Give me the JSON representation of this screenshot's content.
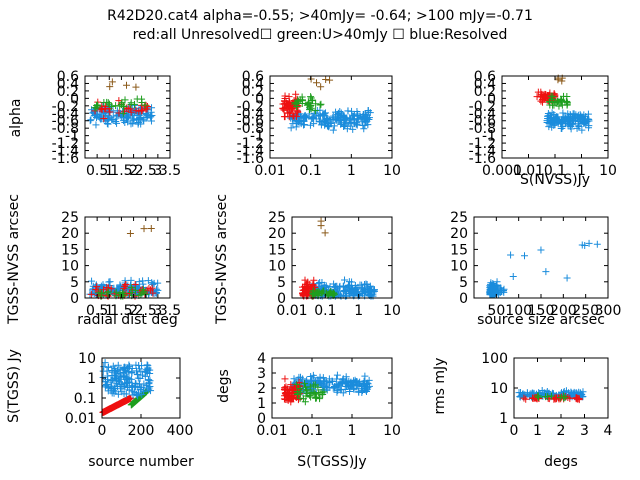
{
  "header": {
    "line1": "R42D20.cat4 alpha=-0.55; >40mJy= -0.64; >100 mJy=-0.71",
    "line2": "red:all Unresolved☐ green:U>40mJy ☐ blue:Resolved"
  },
  "colors": {
    "red": "#ee1111",
    "green": "#1f9e1f",
    "blue": "#1a8cdc",
    "brown": "#8b5a1a"
  },
  "chart_data": [
    {
      "type": "scatter",
      "name": "alpha-vs-radial",
      "ylabel": "alpha",
      "xlabel": "",
      "xlim": [
        0,
        3.5
      ],
      "ylim": [
        -1.6,
        0.6
      ],
      "xticks": [
        "0.5",
        "1",
        "1.5",
        "2",
        "2.5",
        "3",
        "3.5"
      ],
      "yticks": [
        "0.6",
        "0.4",
        "0.2",
        "0",
        "-0.2",
        "-0.4",
        "-0.6",
        "-0.8",
        "-1",
        "-1.2",
        "-1.4",
        "-1.6"
      ]
    },
    {
      "type": "scatter",
      "name": "alpha-vs-S",
      "ylabel": "",
      "xlabel": "",
      "xscale": "log",
      "xlim": [
        0.01,
        10
      ],
      "ylim": [
        -1.6,
        0.6
      ],
      "xticks": [
        "0.01",
        "0.1",
        "1",
        "10"
      ],
      "yticks": [
        "0.6",
        "0.4",
        "0.2",
        "0",
        "-0.2",
        "-0.4",
        "-0.6",
        "-0.8",
        "-1",
        "-1.2",
        "-1.4",
        "-1.6"
      ]
    },
    {
      "type": "scatter",
      "name": "alpha-vs-SNVSS",
      "ylabel": "",
      "xlabel": "S(NVSS)Jy",
      "xscale": "log",
      "xlim": [
        0.001,
        10
      ],
      "ylim": [
        -1.6,
        0.6
      ],
      "xticks": [
        "0.001",
        "0.01",
        "0.1",
        "1",
        "10"
      ],
      "yticks": [
        "0.6",
        "0.4",
        "0.2",
        "0",
        "-0.2",
        "-0.4",
        "-0.6",
        "-0.8",
        "-1",
        "-1.2",
        "-1.4",
        "-1.6"
      ]
    },
    {
      "type": "scatter",
      "name": "offset-vs-radial",
      "ylabel": "TGSS-NVSS arcsec",
      "xlabel": "radial dist deg",
      "xlim": [
        0,
        3.5
      ],
      "ylim": [
        0,
        25
      ],
      "xticks": [
        "0.5",
        "1",
        "1.5",
        "2",
        "2.5",
        "3",
        "3.5"
      ],
      "yticks": [
        "25",
        "20",
        "15",
        "10",
        "5",
        "0"
      ]
    },
    {
      "type": "scatter",
      "name": "offset-vs-S",
      "ylabel": "TGSS-NVSS arcsec",
      "xlabel": "",
      "xscale": "log",
      "xlim": [
        0.01,
        10
      ],
      "ylim": [
        0,
        25
      ],
      "xticks": [
        "0.01",
        "0.1",
        "1",
        "10"
      ],
      "yticks": [
        "25",
        "20",
        "15",
        "10",
        "5",
        "0"
      ]
    },
    {
      "type": "scatter",
      "name": "offset-vs-size",
      "ylabel": "",
      "xlabel": "source size arcsec",
      "xlim": [
        0,
        300
      ],
      "ylim": [
        0,
        25
      ],
      "xticks": [
        "50",
        "100",
        "150",
        "200",
        "250",
        "300"
      ],
      "yticks": [
        "25",
        "20",
        "15",
        "10",
        "5",
        "0"
      ]
    },
    {
      "type": "scatter",
      "name": "S-vs-number",
      "ylabel": "S(TGSS) Jy",
      "xlabel": "source number",
      "yscale": "log",
      "xlim": [
        0,
        400
      ],
      "ylim": [
        0.01,
        10
      ],
      "xticks": [
        "0",
        "200",
        "400"
      ],
      "yticks": [
        "10",
        "1",
        "0.1",
        "0.01"
      ]
    },
    {
      "type": "scatter",
      "name": "degs-vs-S",
      "ylabel": "degs",
      "xlabel": "S(TGSS)Jy",
      "xscale": "log",
      "xlim": [
        0.01,
        10
      ],
      "ylim": [
        0,
        4
      ],
      "xticks": [
        "0.01",
        "0.1",
        "1",
        "10"
      ],
      "yticks": [
        "4",
        "3",
        "2",
        "1",
        "0"
      ]
    },
    {
      "type": "scatter",
      "name": "rms-vs-degs",
      "ylabel": "rms mJy",
      "xlabel": "degs",
      "yscale": "log",
      "xlim": [
        0,
        4
      ],
      "ylim": [
        1,
        100
      ],
      "xticks": [
        "0",
        "1",
        "2",
        "3",
        "4"
      ],
      "yticks": [
        "100",
        "10",
        "1"
      ]
    }
  ]
}
